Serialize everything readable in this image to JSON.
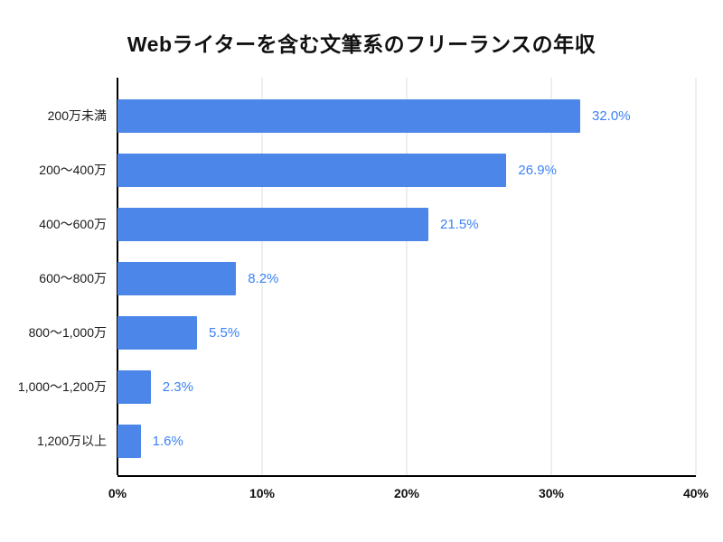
{
  "colors": {
    "bar": "#4c86e8",
    "value_label": "#3b82f6",
    "grid": "#dadce0",
    "axis": "#000000"
  },
  "chart_data": {
    "type": "bar",
    "orientation": "horizontal",
    "title": "Webライターを含む文筆系のフリーランスの年収",
    "categories": [
      "200万未満",
      "200〜400万",
      "400〜600万",
      "600〜800万",
      "800〜1,000万",
      "1,000〜1,200万",
      "1,200万以上"
    ],
    "values": [
      32.0,
      26.9,
      21.5,
      8.2,
      5.5,
      2.3,
      1.6
    ],
    "value_labels": [
      "32.0%",
      "26.9%",
      "21.5%",
      "8.2%",
      "5.5%",
      "2.3%",
      "1.6%"
    ],
    "xlabel": "",
    "ylabel": "",
    "xlim": [
      0,
      40
    ],
    "x_ticks": [
      "0%",
      "10%",
      "20%",
      "30%",
      "40%"
    ],
    "grid": true,
    "legend_position": "none"
  }
}
